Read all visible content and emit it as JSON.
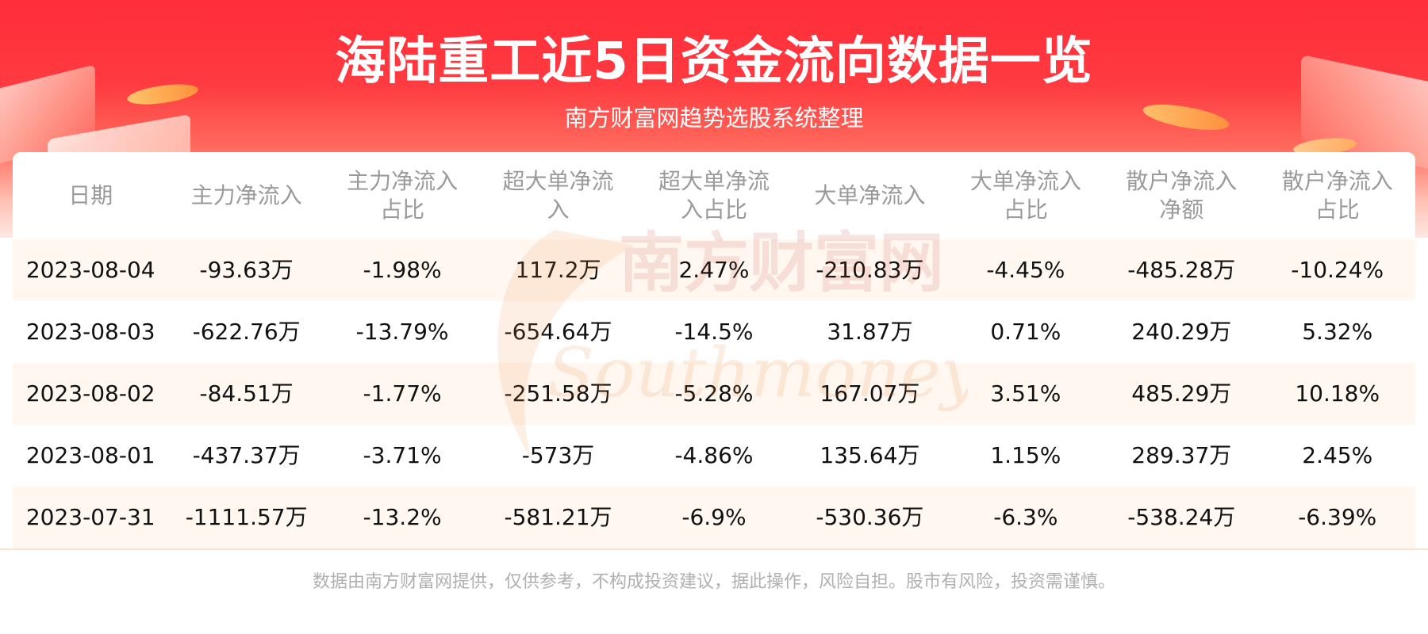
{
  "title": "海陆重工近5日资金流向数据一览",
  "subtitle": "南方财富网趋势选股系统整理",
  "watermark": {
    "cn": "南方财富网",
    "en": "Southmoney.com"
  },
  "table": {
    "headers": [
      [
        "日期"
      ],
      [
        "主力净流入"
      ],
      [
        "主力净流入",
        "占比"
      ],
      [
        "超大单净流",
        "入"
      ],
      [
        "超大单净流",
        "入占比"
      ],
      [
        "大单净流入"
      ],
      [
        "大单净流入",
        "占比"
      ],
      [
        "散户净流入",
        "净额"
      ],
      [
        "散户净流入",
        "占比"
      ]
    ],
    "rows": [
      [
        "2023-08-04",
        "-93.63万",
        "-1.98%",
        "117.2万",
        "2.47%",
        "-210.83万",
        "-4.45%",
        "-485.28万",
        "-10.24%"
      ],
      [
        "2023-08-03",
        "-622.76万",
        "-13.79%",
        "-654.64万",
        "-14.5%",
        "31.87万",
        "0.71%",
        "240.29万",
        "5.32%"
      ],
      [
        "2023-08-02",
        "-84.51万",
        "-1.77%",
        "-251.58万",
        "-5.28%",
        "167.07万",
        "3.51%",
        "485.29万",
        "10.18%"
      ],
      [
        "2023-08-01",
        "-437.37万",
        "-3.71%",
        "-573万",
        "-4.86%",
        "135.64万",
        "1.15%",
        "289.37万",
        "2.45%"
      ],
      [
        "2023-07-31",
        "-1111.57万",
        "-13.2%",
        "-581.21万",
        "-6.9%",
        "-530.36万",
        "-6.3%",
        "-538.24万",
        "-6.39%"
      ]
    ]
  },
  "disclaimer": "数据由南方财富网提供，仅供参考，不构成投资建议，据此操作，风险自担。股市有风险，投资需谨慎。",
  "colors": {
    "banner_red": "#ff2d3a",
    "row_tint": "#fff7f0",
    "header_text": "#9a9a9a",
    "body_text": "#111111"
  }
}
